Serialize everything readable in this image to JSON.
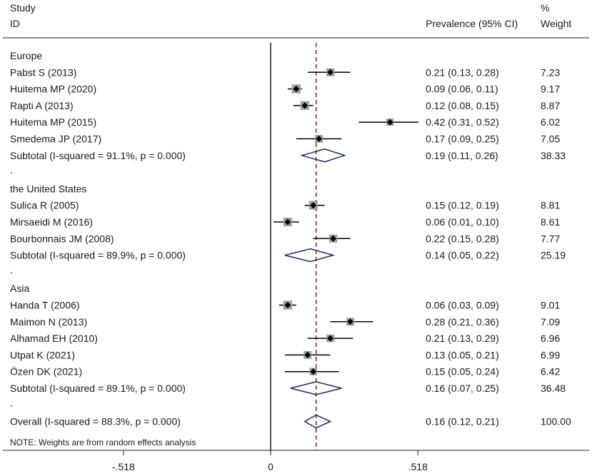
{
  "chart_data": {
    "type": "forest",
    "header": {
      "study_line1": "Study",
      "study_line2": "ID",
      "ci_label": "Prevalence (95% CI)",
      "weight_line1": "%",
      "weight_line2": "Weight"
    },
    "x_axis": {
      "ticks": [
        {
          "value": -0.518,
          "label": "-.518"
        },
        {
          "value": 0,
          "label": "0"
        },
        {
          "value": 0.518,
          "label": ".518"
        }
      ],
      "reference_line": 0,
      "overall_line": 0.16
    },
    "rows": [
      {
        "kind": "group",
        "label": "Europe"
      },
      {
        "kind": "study",
        "label": "Pabst S (2013)",
        "est": 0.21,
        "lo": 0.13,
        "hi": 0.28,
        "ci_text": "0.21 (0.13, 0.28)",
        "weight": "7.23",
        "w": 7.23
      },
      {
        "kind": "study",
        "label": "Huitema MP (2020)",
        "est": 0.09,
        "lo": 0.06,
        "hi": 0.11,
        "ci_text": "0.09 (0.06, 0.11)",
        "weight": "9.17",
        "w": 9.17
      },
      {
        "kind": "study",
        "label": "Rapti A (2013)",
        "est": 0.12,
        "lo": 0.08,
        "hi": 0.15,
        "ci_text": "0.12 (0.08, 0.15)",
        "weight": "8.87",
        "w": 8.87
      },
      {
        "kind": "study",
        "label": "Huitema MP (2015)",
        "est": 0.42,
        "lo": 0.31,
        "hi": 0.52,
        "ci_text": "0.42 (0.31, 0.52)",
        "weight": "6.02",
        "w": 6.02
      },
      {
        "kind": "study",
        "label": "Smedema JP (2017)",
        "est": 0.17,
        "lo": 0.09,
        "hi": 0.25,
        "ci_text": "0.17 (0.09, 0.25)",
        "weight": "7.05",
        "w": 7.05
      },
      {
        "kind": "subtotal",
        "label": "Subtotal  (I-squared = 91.1%, p = 0.000)",
        "est": 0.19,
        "lo": 0.11,
        "hi": 0.26,
        "ci_text": "0.19 (0.11, 0.26)",
        "weight": "38.33"
      },
      {
        "kind": "spacer",
        "label": "."
      },
      {
        "kind": "group",
        "label": "the United States"
      },
      {
        "kind": "study",
        "label": "Sulica R (2005)",
        "est": 0.15,
        "lo": 0.12,
        "hi": 0.19,
        "ci_text": "0.15 (0.12, 0.19)",
        "weight": "8.81",
        "w": 8.81
      },
      {
        "kind": "study",
        "label": "Mirsaeidi M (2016)",
        "est": 0.06,
        "lo": 0.01,
        "hi": 0.1,
        "ci_text": "0.06 (0.01, 0.10)",
        "weight": "8.61",
        "w": 8.61
      },
      {
        "kind": "study",
        "label": "Bourbonnais JM (2008)",
        "est": 0.22,
        "lo": 0.15,
        "hi": 0.28,
        "ci_text": "0.22 (0.15, 0.28)",
        "weight": "7.77",
        "w": 7.77
      },
      {
        "kind": "subtotal",
        "label": "Subtotal  (I-squared = 89.9%, p = 0.000)",
        "est": 0.14,
        "lo": 0.05,
        "hi": 0.22,
        "ci_text": "0.14 (0.05, 0.22)",
        "weight": "25.19"
      },
      {
        "kind": "spacer",
        "label": "."
      },
      {
        "kind": "group",
        "label": "Asia"
      },
      {
        "kind": "study",
        "label": "Handa T (2006)",
        "est": 0.06,
        "lo": 0.03,
        "hi": 0.09,
        "ci_text": "0.06 (0.03, 0.09)",
        "weight": "9.01",
        "w": 9.01
      },
      {
        "kind": "study",
        "label": "Maimon N (2013)",
        "est": 0.28,
        "lo": 0.21,
        "hi": 0.36,
        "ci_text": "0.28 (0.21, 0.36)",
        "weight": "7.09",
        "w": 7.09
      },
      {
        "kind": "study",
        "label": "Alhamad EH (2010)",
        "est": 0.21,
        "lo": 0.13,
        "hi": 0.29,
        "ci_text": "0.21 (0.13, 0.29)",
        "weight": "6.96",
        "w": 6.96
      },
      {
        "kind": "study",
        "label": "Utpat K (2021)",
        "est": 0.13,
        "lo": 0.05,
        "hi": 0.21,
        "ci_text": "0.13 (0.05, 0.21)",
        "weight": "6.99",
        "w": 6.99
      },
      {
        "kind": "study",
        "label": "Özen DK (2021)",
        "est": 0.15,
        "lo": 0.05,
        "hi": 0.24,
        "ci_text": "0.15 (0.05, 0.24)",
        "weight": "6.42",
        "w": 6.42
      },
      {
        "kind": "subtotal",
        "label": "Subtotal  (I-squared = 89.1%, p = 0.000)",
        "est": 0.16,
        "lo": 0.07,
        "hi": 0.25,
        "ci_text": "0.16 (0.07, 0.25)",
        "weight": "36.48"
      },
      {
        "kind": "spacer",
        "label": "."
      },
      {
        "kind": "overall",
        "label": "Overall  (I-squared = 88.3%, p = 0.000)",
        "est": 0.16,
        "lo": 0.12,
        "hi": 0.21,
        "ci_text": "0.16 (0.12, 0.21)",
        "weight": "100.00"
      }
    ],
    "note": "NOTE: Weights are from random effects analysis",
    "colors": {
      "text": "#1a1a1a",
      "diamond": "#1a2a5e",
      "overall_line": "#8b1a1a",
      "box": "#a0a0a0",
      "marker": "#000000"
    }
  }
}
